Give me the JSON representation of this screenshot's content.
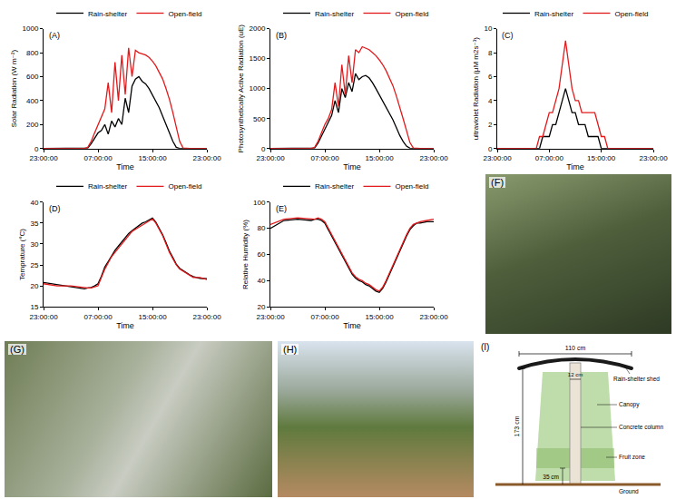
{
  "chart_data": [
    {
      "type": "line",
      "annotations": [
        "(A)"
      ],
      "x_label": "Time",
      "y_label": "Solar Radiation (W m⁻²)",
      "x": [
        0,
        2,
        4,
        6,
        6.5,
        7,
        7.5,
        8,
        8.5,
        9,
        9.5,
        10,
        10.5,
        11,
        11.5,
        12,
        12.5,
        13,
        13.5,
        14,
        14.5,
        15,
        15.5,
        16,
        16.5,
        17,
        17.5,
        18,
        18.5,
        19,
        19.5,
        20,
        20.5,
        21,
        21.5,
        22,
        23,
        24
      ],
      "xlim": [
        0,
        24
      ],
      "xticks": [
        {
          "value": 0,
          "label": "23:00:00"
        },
        {
          "value": 8,
          "label": "07:00:00"
        },
        {
          "value": 16,
          "label": "15:00:00"
        },
        {
          "value": 24,
          "label": "23:00:00"
        }
      ],
      "ylim": [
        0,
        1000
      ],
      "yticks": [
        0,
        200,
        400,
        600,
        800,
        1000
      ],
      "grid": false,
      "legend": "top right",
      "series": [
        {
          "name": "Rain-shelter",
          "color": "#000000",
          "values": [
            0,
            0,
            0,
            0,
            5,
            40,
            90,
            130,
            150,
            200,
            120,
            230,
            180,
            250,
            200,
            420,
            300,
            520,
            580,
            600,
            560,
            540,
            500,
            450,
            400,
            340,
            270,
            200,
            130,
            60,
            10,
            0,
            0,
            0,
            0,
            0,
            0,
            0
          ]
        },
        {
          "name": "Open-field",
          "color": "#e31a1c",
          "values": [
            0,
            0,
            0,
            0,
            10,
            60,
            130,
            200,
            260,
            330,
            550,
            300,
            720,
            400,
            780,
            450,
            840,
            600,
            820,
            800,
            790,
            780,
            760,
            730,
            690,
            640,
            580,
            500,
            410,
            300,
            180,
            60,
            5,
            0,
            0,
            0,
            0,
            0
          ]
        }
      ]
    },
    {
      "type": "line",
      "annotations": [
        "(B)"
      ],
      "x_label": "Time",
      "y_label": "Photosynthetically Active Radiation (uE)",
      "x": [
        0,
        2,
        4,
        6,
        6.5,
        7,
        7.5,
        8,
        8.5,
        9,
        9.5,
        10,
        10.5,
        11,
        11.5,
        12,
        12.5,
        13,
        13.5,
        14,
        14.5,
        15,
        15.5,
        16,
        16.5,
        17,
        17.5,
        18,
        18.5,
        19,
        19.5,
        20,
        20.5,
        21,
        21.5,
        22,
        23,
        24
      ],
      "xlim": [
        0,
        24
      ],
      "xticks": [
        {
          "value": 0,
          "label": "23:00:00"
        },
        {
          "value": 8,
          "label": "07:00:00"
        },
        {
          "value": 16,
          "label": "15:00:00"
        },
        {
          "value": 24,
          "label": "23:00:00"
        }
      ],
      "ylim": [
        0,
        2000
      ],
      "yticks": [
        0,
        500,
        1000,
        1500,
        2000
      ],
      "grid": false,
      "legend": "top right",
      "series": [
        {
          "name": "Rain-shelter",
          "color": "#000000",
          "values": [
            0,
            0,
            0,
            0,
            10,
            90,
            200,
            320,
            420,
            550,
            800,
            600,
            1000,
            850,
            1100,
            950,
            1250,
            1150,
            1200,
            1220,
            1180,
            1100,
            1000,
            900,
            800,
            700,
            600,
            480,
            350,
            220,
            120,
            40,
            5,
            0,
            0,
            0,
            0,
            0
          ]
        },
        {
          "name": "Open-field",
          "color": "#e31a1c",
          "values": [
            0,
            0,
            0,
            0,
            20,
            120,
            260,
            400,
            500,
            650,
            1100,
            700,
            1400,
            900,
            1550,
            1100,
            1650,
            1600,
            1700,
            1680,
            1650,
            1600,
            1550,
            1480,
            1400,
            1300,
            1180,
            1050,
            880,
            700,
            500,
            300,
            100,
            10,
            0,
            0,
            0,
            0
          ]
        }
      ]
    },
    {
      "type": "line",
      "annotations": [
        "(C)"
      ],
      "x_label": "Time",
      "y_label": "ultraviolet Radiation (μM m2s⁻¹)",
      "x": [
        0,
        2,
        4,
        6,
        6.5,
        7,
        7.5,
        8,
        8.5,
        9,
        9.5,
        10,
        10.5,
        11,
        11.5,
        12,
        12.5,
        13,
        13.5,
        14,
        14.5,
        15,
        15.5,
        16,
        16.5,
        17,
        17.5,
        18,
        18.5,
        19,
        19.5,
        20,
        20.5,
        21,
        21.5,
        22,
        23,
        24
      ],
      "xlim": [
        0,
        24
      ],
      "xticks": [
        {
          "value": 0,
          "label": "23:00:00"
        },
        {
          "value": 8,
          "label": "07:00:00"
        },
        {
          "value": 16,
          "label": "15:00:00"
        },
        {
          "value": 24,
          "label": "23:00:00"
        }
      ],
      "ylim": [
        0,
        10
      ],
      "yticks": [
        0,
        2,
        4,
        6,
        8,
        10
      ],
      "grid": false,
      "legend": "top right",
      "series": [
        {
          "name": "Rain-shelter",
          "color": "#000000",
          "values": [
            0,
            0,
            0,
            0,
            0,
            1,
            1,
            1,
            2,
            2,
            3,
            4,
            5,
            4,
            3,
            3,
            2,
            2,
            2,
            1,
            1,
            1,
            1,
            0,
            0,
            0,
            0,
            0,
            0,
            0,
            0,
            0,
            0,
            0,
            0,
            0,
            0,
            0
          ]
        },
        {
          "name": "Open-field",
          "color": "#e31a1c",
          "values": [
            0,
            0,
            0,
            0,
            1,
            1,
            2,
            3,
            3,
            4,
            5,
            7,
            9,
            7,
            5,
            4,
            4,
            3,
            3,
            3,
            3,
            3,
            2,
            1,
            1,
            0,
            0,
            0,
            0,
            0,
            0,
            0,
            0,
            0,
            0,
            0,
            0,
            0
          ]
        }
      ]
    },
    {
      "type": "line",
      "annotations": [
        "(D)"
      ],
      "x_label": "Time",
      "y_label": "Temprature (°C)",
      "x": [
        0,
        2,
        4,
        6,
        6.5,
        7,
        7.5,
        8,
        8.5,
        9,
        9.5,
        10,
        10.5,
        11,
        11.5,
        12,
        12.5,
        13,
        13.5,
        14,
        14.5,
        15,
        15.5,
        16,
        16.5,
        17,
        17.5,
        18,
        18.5,
        19,
        19.5,
        20,
        20.5,
        21,
        21.5,
        22,
        23,
        24
      ],
      "xlim": [
        0,
        24
      ],
      "xticks": [
        {
          "value": 0,
          "label": "23:00:00"
        },
        {
          "value": 8,
          "label": "07:00:00"
        },
        {
          "value": 16,
          "label": "15:00:00"
        },
        {
          "value": 24,
          "label": "23:00:00"
        }
      ],
      "ylim": [
        15,
        40
      ],
      "yticks": [
        15,
        20,
        25,
        30,
        35,
        40
      ],
      "grid": false,
      "legend": "top right",
      "series": [
        {
          "name": "Rain-shelter",
          "color": "#000000",
          "values": [
            20.8,
            20.3,
            19.8,
            19.3,
            19.5,
            19.6,
            20,
            20.5,
            22.3,
            24.5,
            25.8,
            27.2,
            28.5,
            29.5,
            30.5,
            31.5,
            32.5,
            33.2,
            33.8,
            34.5,
            35,
            35.3,
            35.8,
            36.2,
            35.2,
            33.8,
            32.2,
            30.3,
            28.3,
            26.8,
            25.2,
            24.2,
            23.6,
            23.2,
            22.6,
            22.2,
            21.8,
            21.7
          ]
        },
        {
          "name": "Open-field",
          "color": "#e31a1c",
          "values": [
            20.5,
            20,
            20,
            19.5,
            19.5,
            19.5,
            19.8,
            20,
            22,
            24,
            25.5,
            27,
            28,
            29,
            30,
            31,
            32,
            33,
            33.5,
            34,
            34.5,
            35,
            35.5,
            36,
            35,
            33.5,
            32,
            30,
            28,
            26.5,
            25,
            24,
            23.5,
            23,
            22.5,
            22,
            22,
            21.5
          ]
        }
      ]
    },
    {
      "type": "line",
      "annotations": [
        "(E)"
      ],
      "x_label": "Time",
      "y_label": "Relative Humidity (%)",
      "x": [
        0,
        2,
        4,
        6,
        6.5,
        7,
        7.5,
        8,
        8.5,
        9,
        9.5,
        10,
        10.5,
        11,
        11.5,
        12,
        12.5,
        13,
        13.5,
        14,
        14.5,
        15,
        15.5,
        16,
        16.5,
        17,
        17.5,
        18,
        18.5,
        19,
        19.5,
        20,
        20.5,
        21,
        21.5,
        22,
        23,
        24
      ],
      "xlim": [
        0,
        24
      ],
      "xticks": [
        {
          "value": 0,
          "label": "23:00:00"
        },
        {
          "value": 8,
          "label": "07:00:00"
        },
        {
          "value": 16,
          "label": "15:00:00"
        },
        {
          "value": 24,
          "label": "23:00:00"
        }
      ],
      "ylim": [
        20,
        100
      ],
      "yticks": [
        20,
        40,
        60,
        80,
        100
      ],
      "grid": false,
      "legend": "top right",
      "series": [
        {
          "name": "Rain-shelter",
          "color": "#000000",
          "values": [
            80,
            86,
            87,
            86,
            87,
            87,
            86,
            84,
            79,
            74,
            69,
            64,
            59,
            54,
            49,
            45,
            42,
            40,
            39,
            37,
            36,
            34,
            32,
            31,
            34,
            39,
            45,
            51,
            57,
            63,
            69,
            74,
            79,
            82,
            84,
            84,
            85,
            85
          ]
        },
        {
          "name": "Open-field",
          "color": "#e31a1c",
          "values": [
            83,
            87,
            88,
            87,
            87,
            88,
            87,
            85,
            80,
            75,
            70,
            65,
            60,
            55,
            50,
            46,
            43,
            41,
            40,
            38,
            37,
            35,
            33,
            32,
            35,
            40,
            46,
            52,
            58,
            64,
            70,
            75,
            80,
            83,
            84,
            85,
            86,
            87
          ]
        }
      ]
    }
  ],
  "photos": [
    {
      "label": "(F)"
    },
    {
      "label": "(G)"
    },
    {
      "label": "(H)"
    }
  ],
  "diagram": {
    "label": "(I)",
    "shed_width": "110 cm",
    "column_width": "12 cm",
    "shed": "Rain-shelter shed",
    "height": "173 cm",
    "canopy": "Canopy",
    "column": "Concrete column",
    "fruit_zone": "Fruit zone",
    "fruit_height": "35 cm",
    "ground": "Ground"
  }
}
